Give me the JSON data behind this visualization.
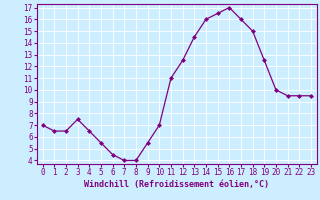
{
  "x": [
    0,
    1,
    2,
    3,
    4,
    5,
    6,
    7,
    8,
    9,
    10,
    11,
    12,
    13,
    14,
    15,
    16,
    17,
    18,
    19,
    20,
    21,
    22,
    23
  ],
  "y": [
    7.0,
    6.5,
    6.5,
    7.5,
    6.5,
    5.5,
    4.5,
    4.0,
    4.0,
    5.5,
    7.0,
    11.0,
    12.5,
    14.5,
    16.0,
    16.5,
    17.0,
    16.0,
    15.0,
    12.5,
    10.0,
    9.5,
    9.5,
    9.5
  ],
  "xlim": [
    -0.5,
    23.5
  ],
  "ylim": [
    3.7,
    17.3
  ],
  "yticks": [
    4,
    5,
    6,
    7,
    8,
    9,
    10,
    11,
    12,
    13,
    14,
    15,
    16,
    17
  ],
  "xticks": [
    0,
    1,
    2,
    3,
    4,
    5,
    6,
    7,
    8,
    9,
    10,
    11,
    12,
    13,
    14,
    15,
    16,
    17,
    18,
    19,
    20,
    21,
    22,
    23
  ],
  "xlabel": "Windchill (Refroidissement éolien,°C)",
  "line_color": "#800080",
  "marker": "D",
  "marker_size": 2.0,
  "bg_color": "#cceeff",
  "grid_color": "#ffffff",
  "spine_color": "#800080",
  "tick_color": "#800080",
  "label_color": "#800080",
  "tick_fontsize": 5.5,
  "xlabel_fontsize": 6.0
}
